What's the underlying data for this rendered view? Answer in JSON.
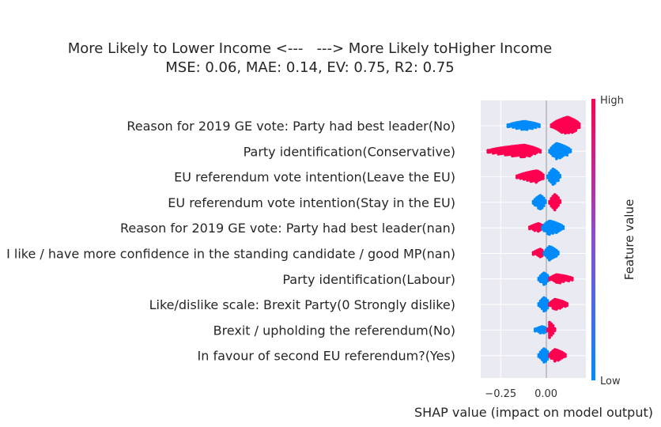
{
  "chart_data": {
    "type": "scatter",
    "subtype": "shap-beeswarm",
    "title": "More Likely to Lower Income <---   ---> More Likely toHigher Income",
    "subtitle": "MSE: 0.06, MAE: 0.14, EV: 0.75, R2: 0.75",
    "xlabel": "SHAP value (impact on model output)",
    "xlim": [
      -0.36,
      0.22
    ],
    "x_ticks": [
      "−0.25",
      "0.00"
    ],
    "x_tick_values": [
      -0.25,
      0.0
    ],
    "grid": true,
    "colorbar": {
      "title": "Feature value",
      "high_label": "High",
      "low_label": "Low",
      "low_color": "#008bfb",
      "high_color": "#ff0051"
    },
    "features": [
      {
        "name": "Reason for 2019 GE vote: Party had best leader(No)",
        "clusters": [
          {
            "value": "low",
            "min": -0.21,
            "max": -0.03,
            "center": -0.12,
            "spread": 0.5
          },
          {
            "value": "high",
            "min": 0.03,
            "max": 0.19,
            "center": 0.12,
            "spread": 1.0
          }
        ]
      },
      {
        "name": "Party identification(Conservative)",
        "clusters": [
          {
            "value": "high",
            "min": -0.32,
            "max": -0.03,
            "center": -0.12,
            "spread": 0.7
          },
          {
            "value": "low",
            "min": 0.02,
            "max": 0.14,
            "center": 0.06,
            "spread": 0.9
          }
        ]
      },
      {
        "name": "EU referendum vote intention(Leave the EU)",
        "clusters": [
          {
            "value": "high",
            "min": -0.16,
            "max": -0.01,
            "center": -0.05,
            "spread": 0.7
          },
          {
            "value": "low",
            "min": 0.01,
            "max": 0.08,
            "center": 0.04,
            "spread": 0.9
          }
        ]
      },
      {
        "name": "EU referendum vote intention(Stay in the EU)",
        "clusters": [
          {
            "value": "low",
            "min": -0.07,
            "max": 0.0,
            "center": -0.03,
            "spread": 0.8
          },
          {
            "value": "high",
            "min": 0.02,
            "max": 0.08,
            "center": 0.05,
            "spread": 0.9
          }
        ]
      },
      {
        "name": "Reason for 2019 GE vote: Party had best leader(nan)",
        "clusters": [
          {
            "value": "high",
            "min": -0.09,
            "max": -0.01,
            "center": -0.04,
            "spread": 0.5
          },
          {
            "value": "low",
            "min": -0.02,
            "max": 0.1,
            "center": 0.02,
            "spread": 0.8
          }
        ]
      },
      {
        "name": "I like / have more confidence in the standing candidate / good MP(nan)",
        "clusters": [
          {
            "value": "high",
            "min": -0.07,
            "max": -0.01,
            "center": -0.03,
            "spread": 0.5
          },
          {
            "value": "low",
            "min": -0.01,
            "max": 0.07,
            "center": 0.02,
            "spread": 0.8
          }
        ]
      },
      {
        "name": "Party identification(Labour)",
        "clusters": [
          {
            "value": "low",
            "min": -0.04,
            "max": 0.02,
            "center": -0.01,
            "spread": 0.7
          },
          {
            "value": "high",
            "min": 0.02,
            "max": 0.15,
            "center": 0.06,
            "spread": 0.5
          }
        ]
      },
      {
        "name": "Like/dislike scale: Brexit Party(0 Strongly dislike)",
        "clusters": [
          {
            "value": "low",
            "min": -0.04,
            "max": 0.02,
            "center": -0.01,
            "spread": 0.8
          },
          {
            "value": "high",
            "min": 0.02,
            "max": 0.12,
            "center": 0.05,
            "spread": 0.6
          }
        ]
      },
      {
        "name": "Brexit / upholding the referendum(No)",
        "clusters": [
          {
            "value": "low",
            "min": -0.06,
            "max": 0.01,
            "center": -0.02,
            "spread": 0.4
          },
          {
            "value": "high",
            "min": 0.01,
            "max": 0.05,
            "center": 0.02,
            "spread": 0.9
          }
        ]
      },
      {
        "name": "In favour of second EU referendum?(Yes)",
        "clusters": [
          {
            "value": "low",
            "min": -0.04,
            "max": 0.02,
            "center": -0.01,
            "spread": 0.8
          },
          {
            "value": "high",
            "min": 0.02,
            "max": 0.11,
            "center": 0.05,
            "spread": 0.7
          }
        ]
      }
    ]
  }
}
